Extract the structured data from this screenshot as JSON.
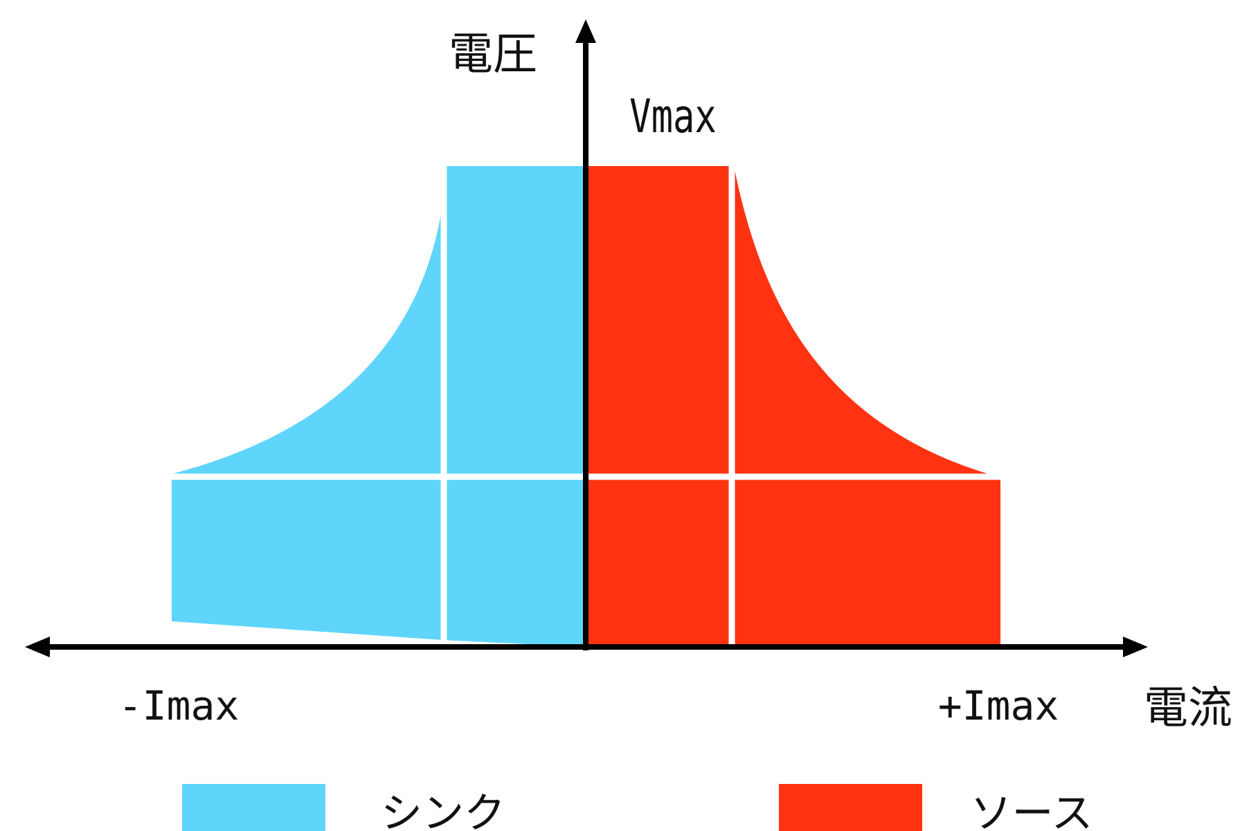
{
  "diagram": {
    "voltage_axis_label": "電圧",
    "current_axis_label": "電流",
    "vmax_label": "Vmax",
    "neg_imax_label": "-Imax",
    "pos_imax_label": "+Imax"
  },
  "legend": {
    "items": [
      {
        "label": "シンク",
        "color": "#5fd5fb"
      },
      {
        "label": "ソース",
        "color": "#ff3311"
      }
    ]
  },
  "colors": {
    "sink": "#5fd5fb",
    "source": "#ff3311",
    "axis": "#000000",
    "divider": "#ffffff"
  }
}
